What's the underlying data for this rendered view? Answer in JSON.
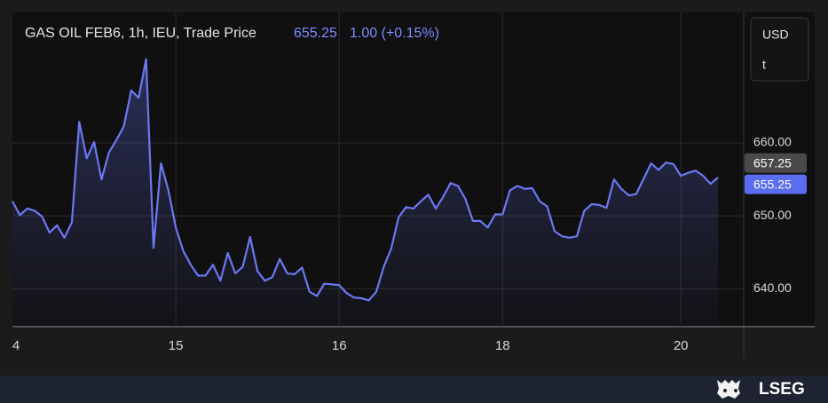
{
  "header": {
    "title": "GAS OIL FEB6, 1h, IEU, Trade Price",
    "last": "655.25",
    "change": "1.00 (+0.15%)"
  },
  "currency_box": {
    "currency": "USD",
    "unit": "t"
  },
  "brand": "LSEG",
  "chart_data": {
    "type": "line",
    "color": "#6b78f2",
    "grid": true,
    "categories": [
      "4",
      null,
      null,
      null,
      null,
      null,
      null,
      null,
      null,
      null,
      null,
      null,
      null,
      null,
      null,
      null,
      null,
      null,
      null,
      null,
      null,
      null,
      "15",
      null,
      null,
      null,
      null,
      null,
      null,
      null,
      null,
      null,
      null,
      null,
      null,
      null,
      null,
      null,
      null,
      null,
      null,
      null,
      null,
      null,
      "16",
      null,
      null,
      null,
      null,
      null,
      null,
      null,
      null,
      null,
      null,
      null,
      null,
      null,
      null,
      null,
      null,
      null,
      null,
      null,
      null,
      null,
      "18",
      null,
      null,
      null,
      null,
      null,
      null,
      null,
      null,
      null,
      null,
      null,
      null,
      null,
      null,
      null,
      null,
      null,
      null,
      null,
      null,
      null,
      null,
      null,
      "20",
      null,
      null,
      null,
      null,
      null
    ],
    "values": [
      652.0,
      650.1,
      651.0,
      650.7,
      649.9,
      647.7,
      648.7,
      647.0,
      649.1,
      662.9,
      657.9,
      660.1,
      655.0,
      658.7,
      660.4,
      662.3,
      667.2,
      666.2,
      671.5,
      645.6,
      657.2,
      653.5,
      648.4,
      645.2,
      643.3,
      641.8,
      641.8,
      643.3,
      641.1,
      644.9,
      642.1,
      643.0,
      647.1,
      642.4,
      641.1,
      641.6,
      644.1,
      642.1,
      642.0,
      642.9,
      639.6,
      639.0,
      640.7,
      640.6,
      640.5,
      639.4,
      638.8,
      638.7,
      638.4,
      639.6,
      643.0,
      645.5,
      649.8,
      651.2,
      651.0,
      652.0,
      652.9,
      651.0,
      652.6,
      654.5,
      654.1,
      652.3,
      649.3,
      649.3,
      648.4,
      650.2,
      650.2,
      653.5,
      654.1,
      653.7,
      653.8,
      652.0,
      651.3,
      647.9,
      647.2,
      647.0,
      647.2,
      650.7,
      651.6,
      651.5,
      651.1,
      655.0,
      653.7,
      652.8,
      653.0,
      655.1,
      657.2,
      656.3,
      657.3,
      657.1,
      655.5,
      655.9,
      656.2,
      655.5,
      654.4,
      655.25
    ],
    "ylim": [
      634.8,
      677.9
    ],
    "yticks": [
      {
        "value": 640,
        "label": "640.00"
      },
      {
        "value": 650,
        "label": "650.00"
      },
      {
        "value": 660,
        "label": "660.00"
      }
    ],
    "price_markers": [
      {
        "value": 657.25,
        "label": "657.25",
        "color": "#4a4a4a"
      },
      {
        "value": 655.25,
        "label": "655.25",
        "color": "#5a6cf0"
      }
    ]
  }
}
